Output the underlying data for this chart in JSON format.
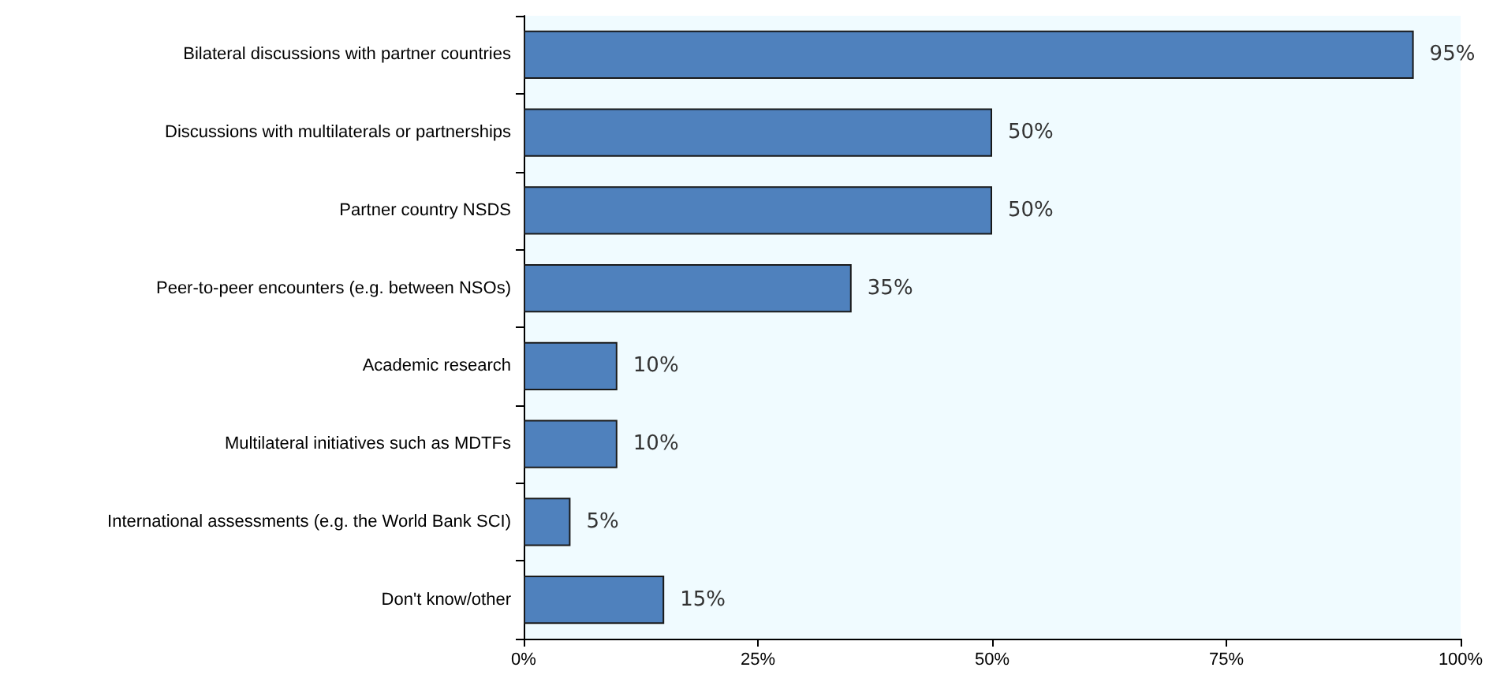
{
  "chart_data": {
    "type": "bar",
    "orientation": "horizontal",
    "categories": [
      "Bilateral discussions with partner countries",
      "Discussions with multilaterals or partnerships",
      "Partner country NSDS",
      "Peer-to-peer encounters (e.g. between NSOs)",
      "Academic research",
      "Multilateral initiatives such as MDTFs",
      "International assessments (e.g. the World Bank SCI)",
      "Don't know/other"
    ],
    "values": [
      95,
      50,
      50,
      35,
      10,
      10,
      5,
      15
    ],
    "value_labels": [
      "95%",
      "50%",
      "50%",
      "35%",
      "10%",
      "10%",
      "5%",
      "15%"
    ],
    "color": "#4f81bd",
    "xlim": [
      0,
      100
    ],
    "xticks": [
      {
        "value": 0,
        "label": "0%"
      },
      {
        "value": 25,
        "label": "25%"
      },
      {
        "value": 50,
        "label": "50%"
      },
      {
        "value": 75,
        "label": "75%"
      },
      {
        "value": 100,
        "label": "100%"
      }
    ],
    "grid": false
  }
}
